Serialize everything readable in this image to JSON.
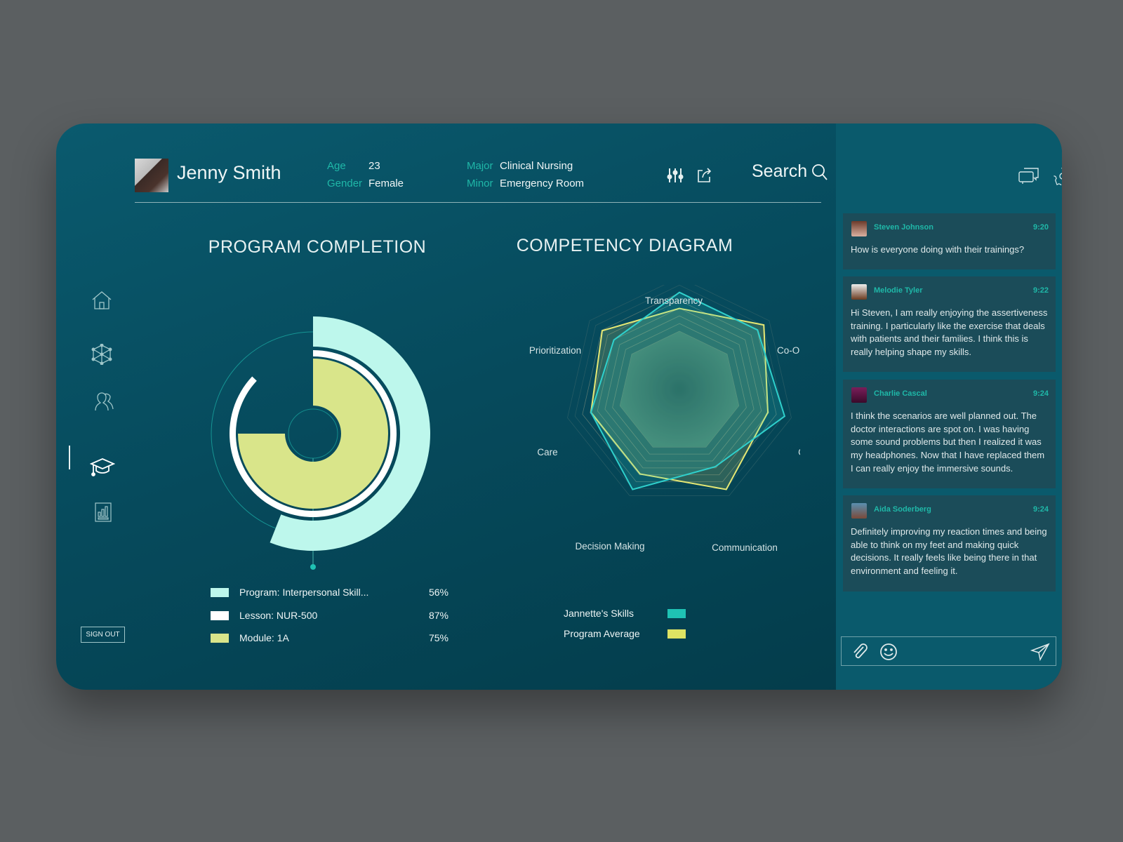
{
  "profile": {
    "name": "Jenny Smith",
    "age_label": "Age",
    "age": "23",
    "gender_label": "Gender",
    "gender": "Female",
    "major_label": "Major",
    "major": "Clinical Nursing",
    "minor_label": "Minor",
    "minor": "Emergency Room"
  },
  "toolbar": {
    "search_label": "Search",
    "icons": [
      "sliders-icon",
      "share-icon",
      "search-icon"
    ]
  },
  "sidebar": {
    "items": [
      {
        "icon": "home-icon"
      },
      {
        "icon": "network-icon"
      },
      {
        "icon": "people-icon"
      },
      {
        "icon": "graduation-cap-icon",
        "active": true
      },
      {
        "icon": "bar-chart-icon"
      }
    ],
    "sign_out": "SIGN OUT"
  },
  "program": {
    "title": "PROGRAM COMPLETION",
    "legend": [
      {
        "label": "Program: Interpersonal Skill...",
        "value": "56%",
        "color": "#bdf7ec"
      },
      {
        "label": "Lesson: NUR-500",
        "value": "87%",
        "color": "#ffffff"
      },
      {
        "label": "Module: 1A",
        "value": "75%",
        "color": "#d9e58a"
      }
    ]
  },
  "competency": {
    "title": "COMPETENCY DIAGRAM",
    "legend": [
      {
        "label": "Jannette's Skills",
        "color": "#1fc2b4"
      },
      {
        "label": "Program Average",
        "color": "#dfe363"
      }
    ]
  },
  "chart_data": [
    {
      "type": "radial-bar",
      "title": "PROGRAM COMPLETION",
      "categories": [
        "Program: Interpersonal Skill...",
        "Lesson: NUR-500",
        "Module: 1A"
      ],
      "values": [
        56,
        87,
        75
      ],
      "unit": "%",
      "colors": [
        "#bdf7ec",
        "#ffffff",
        "#d9e58a"
      ]
    },
    {
      "type": "radar",
      "title": "COMPETENCY DIAGRAM",
      "axes": [
        "Transparency",
        "Co-Ordination",
        "Criticism",
        "Communication",
        "Decision Making",
        "Care",
        "Prioritization"
      ],
      "range": [
        0,
        100
      ],
      "series": [
        {
          "name": "Jannette's Skills",
          "values": [
            87,
            87,
            94,
            72,
            94,
            79,
            73
          ],
          "color": "#2fd0cc"
        },
        {
          "name": "Program Average",
          "values": [
            73,
            94,
            79,
            94,
            79,
            79,
            86
          ],
          "color": "#e6e874"
        }
      ]
    }
  ],
  "chat": {
    "icons": [
      "chat-icon",
      "gear-icon",
      "bell-icon"
    ],
    "messages": [
      {
        "name": "Steven Johnson",
        "time": "9:20",
        "text": "How is everyone doing with their trainings?"
      },
      {
        "name": "Melodie Tyler",
        "time": "9:22",
        "text": "Hi Steven, I am really enjoying the assertiveness training. I particularly like the exercise that deals with patients and their families. I think this is really helping shape my skills."
      },
      {
        "name": "Charlie Cascal",
        "time": "9:24",
        "text": "I think the scenarios are well planned out. The doctor interactions are spot on. I was having some sound problems but then I realized it was my headphones. Now that I have replaced them I can really enjoy the immersive sounds."
      },
      {
        "name": "Aida Soderberg",
        "time": "9:24",
        "text": "Definitely improving my reaction times and being able to think on my feet and making quick decisions. It really feels like being there in that environment and feeling it."
      }
    ]
  }
}
